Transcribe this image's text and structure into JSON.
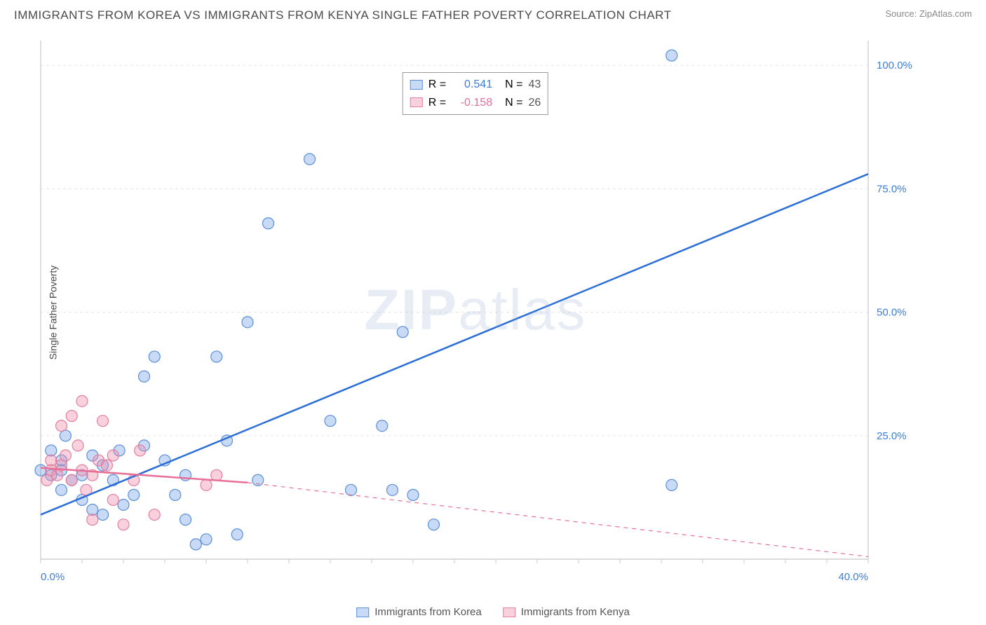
{
  "title": "IMMIGRANTS FROM KOREA VS IMMIGRANTS FROM KENYA SINGLE FATHER POVERTY CORRELATION CHART",
  "source": "Source: ZipAtlas.com",
  "y_axis_label": "Single Father Poverty",
  "watermark": "ZIPatlas",
  "chart": {
    "type": "scatter-with-regression",
    "background_color": "#ffffff",
    "grid_color": "#e8e8e8",
    "axis_color": "#c8c8c8",
    "xlim": [
      0,
      40
    ],
    "ylim": [
      0,
      105
    ],
    "x_ticks": [
      0,
      10,
      20,
      30,
      40
    ],
    "x_tick_labels": [
      "0.0%",
      "",
      "",
      "",
      "40.0%"
    ],
    "y_ticks": [
      25,
      50,
      75,
      100
    ],
    "y_tick_labels": [
      "25.0%",
      "50.0%",
      "75.0%",
      "100.0%"
    ],
    "x_tick_label_color": "#3b7dd8",
    "y_tick_label_color": "#3b7dd8",
    "tick_fontsize": 15,
    "marker_radius": 8,
    "marker_stroke_width": 1.2,
    "line_width": 2.5,
    "series": [
      {
        "name": "Immigrants from Korea",
        "color_fill": "rgba(96,150,230,0.35)",
        "color_stroke": "#5a8fd8",
        "line_color": "#2b6fd6",
        "r_value": "0.541",
        "r_color": "#3b7dd8",
        "n_value": "43",
        "n_color": "#555555",
        "regression": {
          "x0": 0,
          "y0": 9,
          "x1": 40,
          "y1": 78,
          "dash": "none"
        },
        "points": [
          [
            0,
            18
          ],
          [
            0.5,
            17
          ],
          [
            0.5,
            22
          ],
          [
            1,
            14
          ],
          [
            1,
            20
          ],
          [
            1,
            18
          ],
          [
            1.2,
            25
          ],
          [
            1.5,
            16
          ],
          [
            2,
            12
          ],
          [
            2,
            17
          ],
          [
            2.5,
            21
          ],
          [
            2.5,
            10
          ],
          [
            3,
            9
          ],
          [
            3,
            19
          ],
          [
            3.5,
            16
          ],
          [
            3.8,
            22
          ],
          [
            4,
            11
          ],
          [
            4.5,
            13
          ],
          [
            5,
            23
          ],
          [
            5,
            37
          ],
          [
            5.5,
            41
          ],
          [
            6,
            20
          ],
          [
            6.5,
            13
          ],
          [
            7,
            8
          ],
          [
            7,
            17
          ],
          [
            7.5,
            3
          ],
          [
            8,
            4
          ],
          [
            8.5,
            41
          ],
          [
            9,
            24
          ],
          [
            9.5,
            5
          ],
          [
            10,
            48
          ],
          [
            10.5,
            16
          ],
          [
            11,
            68
          ],
          [
            13,
            81
          ],
          [
            14,
            28
          ],
          [
            15,
            14
          ],
          [
            16.5,
            27
          ],
          [
            17,
            14
          ],
          [
            17.5,
            46
          ],
          [
            18,
            13
          ],
          [
            19,
            7
          ],
          [
            30.5,
            102
          ],
          [
            30.5,
            15
          ]
        ]
      },
      {
        "name": "Immigrants from Kenya",
        "color_fill": "rgba(240,140,170,0.4)",
        "color_stroke": "#e37fa0",
        "line_color": "#e86f97",
        "r_value": "-0.158",
        "r_color": "#e86f97",
        "n_value": "26",
        "n_color": "#555555",
        "regression_solid": {
          "x0": 0,
          "y0": 18.5,
          "x1": 10,
          "y1": 15.5
        },
        "regression_dash": {
          "x0": 10,
          "y0": 15.5,
          "x1": 40,
          "y1": 0.5
        },
        "points": [
          [
            0.3,
            16
          ],
          [
            0.5,
            18
          ],
          [
            0.5,
            20
          ],
          [
            0.8,
            17
          ],
          [
            1,
            27
          ],
          [
            1,
            19
          ],
          [
            1.2,
            21
          ],
          [
            1.5,
            16
          ],
          [
            1.5,
            29
          ],
          [
            1.8,
            23
          ],
          [
            2,
            18
          ],
          [
            2,
            32
          ],
          [
            2.2,
            14
          ],
          [
            2.5,
            17
          ],
          [
            2.5,
            8
          ],
          [
            2.8,
            20
          ],
          [
            3,
            28
          ],
          [
            3.2,
            19
          ],
          [
            3.5,
            12
          ],
          [
            3.5,
            21
          ],
          [
            4,
            7
          ],
          [
            4.5,
            16
          ],
          [
            4.8,
            22
          ],
          [
            5.5,
            9
          ],
          [
            8,
            15
          ],
          [
            8.5,
            17
          ]
        ]
      }
    ],
    "legend_top": {
      "r_label": "R =",
      "n_label": "N ="
    },
    "legend_bottom": [
      {
        "label": "Immigrants from Korea",
        "fill": "rgba(96,150,230,0.35)",
        "stroke": "#5a8fd8"
      },
      {
        "label": "Immigrants from Kenya",
        "fill": "rgba(240,140,170,0.4)",
        "stroke": "#e37fa0"
      }
    ]
  }
}
